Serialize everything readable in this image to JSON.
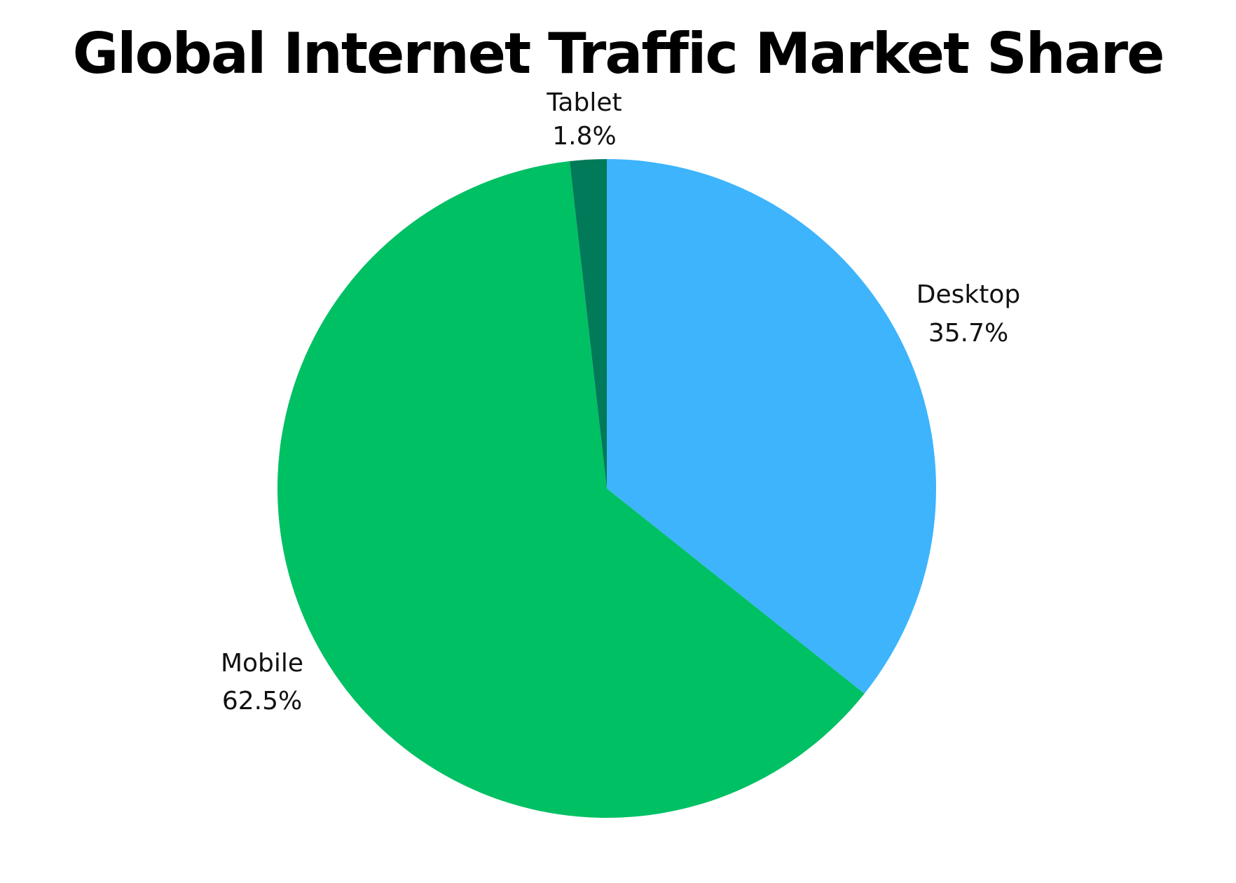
{
  "chart_data": {
    "type": "pie",
    "title": "Global Internet Traffic Market Share",
    "slices": [
      {
        "label": "Desktop",
        "value": 35.7,
        "value_text": "35.7%",
        "color": "#3db4fc"
      },
      {
        "label": "Mobile",
        "value": 62.5,
        "value_text": "62.5%",
        "color": "#00c064"
      },
      {
        "label": "Tablet",
        "value": 1.8,
        "value_text": "1.8%",
        "color": "#007a58"
      }
    ],
    "start_angle": "12 o'clock",
    "direction": "clockwise",
    "legend": "none",
    "labels": "outside slices"
  }
}
